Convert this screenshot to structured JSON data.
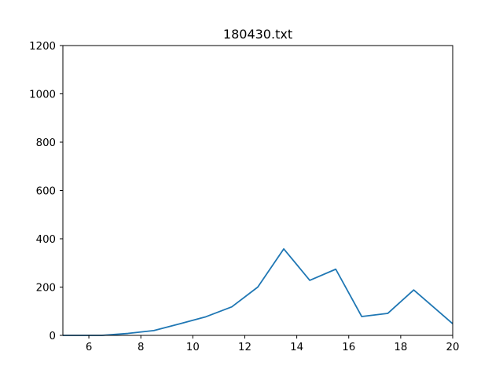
{
  "chart_data": {
    "type": "line",
    "title": "180430.txt",
    "xlabel": "",
    "ylabel": "",
    "xlim": [
      5,
      20
    ],
    "ylim": [
      0,
      1200
    ],
    "x_ticks": [
      "6",
      "8",
      "10",
      "12",
      "14",
      "16",
      "18",
      "20"
    ],
    "y_ticks": [
      "0",
      "200",
      "400",
      "600",
      "800",
      "1000",
      "1200"
    ],
    "grid": false,
    "legend": "none",
    "line_color": "#1f77b4",
    "series": [
      {
        "x": [
          5.0,
          5.5,
          6.5,
          7.5,
          8.5,
          9.5,
          10.5,
          11.5,
          12.5,
          13.5,
          14.5,
          15.5,
          16.5,
          17.5,
          18.5,
          19.5,
          20.0
        ],
        "y": [
          0,
          0,
          0,
          8,
          20,
          48,
          77,
          118,
          200,
          358,
          228,
          274,
          78,
          91,
          188,
          95,
          48
        ]
      }
    ]
  }
}
